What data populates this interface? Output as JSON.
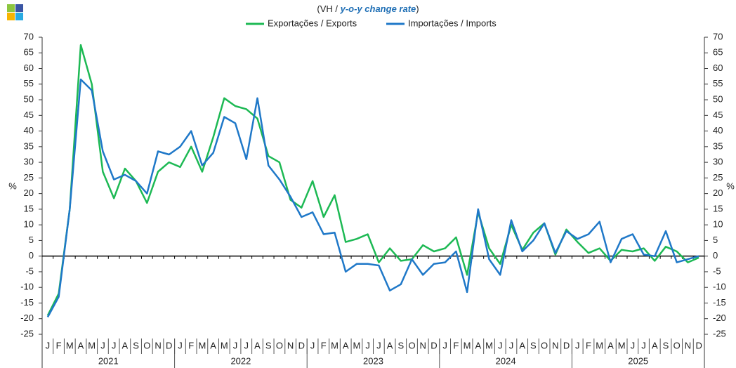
{
  "chart_data": {
    "type": "line",
    "title_parts": [
      "(VH / ",
      "y-o-y change rate",
      ")"
    ],
    "ylabel": "%",
    "categories": [
      "J",
      "F",
      "M",
      "A",
      "M",
      "J",
      "J",
      "A",
      "S",
      "O",
      "N",
      "D",
      "J",
      "F",
      "M",
      "A",
      "M",
      "J",
      "J",
      "A",
      "S",
      "O",
      "N",
      "D",
      "J",
      "F",
      "M",
      "A",
      "M",
      "J",
      "J",
      "A",
      "S",
      "O",
      "N",
      "D",
      "J",
      "F",
      "M",
      "A",
      "M",
      "J",
      "J",
      "A",
      "S",
      "O",
      "N",
      "D",
      "J",
      "F",
      "M",
      "A",
      "M",
      "J",
      "J",
      "A",
      "S",
      "O",
      "N",
      "D"
    ],
    "years": [
      "2021",
      "2022",
      "2023",
      "2024",
      "2025"
    ],
    "series": [
      {
        "name": "Exportações / Exports",
        "color": "#1db954",
        "values": [
          -19,
          -12,
          15,
          67.5,
          55,
          27,
          18.5,
          28,
          24,
          17,
          27,
          30,
          28.5,
          35,
          27,
          38,
          50.5,
          48,
          47,
          44,
          32,
          30,
          18,
          15.5,
          24,
          12.5,
          19.5,
          4.5,
          5.5,
          7,
          -2,
          2.5,
          -1.5,
          -1,
          3.5,
          1.5,
          2.5,
          6,
          -6,
          14,
          2.5,
          -2.5,
          10,
          2,
          7.5,
          10.5,
          0.5,
          8.5,
          4.5,
          1,
          2.5,
          -1.5,
          2,
          1.5,
          2.5,
          -1.5,
          3,
          1.5,
          -2,
          -0.5
        ]
      },
      {
        "name": "Importações / Imports",
        "color": "#1f78c8",
        "values": [
          -19.5,
          -13,
          15,
          56.5,
          53,
          33.5,
          24.5,
          26,
          24,
          20,
          33.5,
          32.5,
          35,
          40,
          29,
          33,
          44.5,
          42.5,
          31,
          50.5,
          29,
          24.5,
          19,
          12.5,
          14,
          7,
          7.5,
          -5,
          -2.5,
          -2.5,
          -3,
          -11,
          -9,
          -1,
          -6,
          -2.5,
          -2,
          1.5,
          -11.5,
          15,
          -1,
          -6,
          11.5,
          1.5,
          5,
          10.5,
          1,
          8,
          5.5,
          7,
          11,
          -2,
          5.5,
          7,
          0.5,
          0,
          8,
          -2,
          -1,
          0
        ]
      }
    ],
    "ylim": [
      -25,
      70
    ],
    "yticks": [
      -25,
      -20,
      -15,
      -10,
      -5,
      0,
      5,
      10,
      15,
      20,
      25,
      30,
      35,
      40,
      45,
      50,
      55,
      60,
      65,
      70
    ],
    "y2lim": [
      -25,
      70
    ],
    "y2ticks": [
      -25,
      -20,
      -15,
      -10,
      -5,
      0,
      5,
      10,
      15,
      20,
      25,
      30,
      35,
      40,
      45,
      50,
      55,
      60,
      65,
      70
    ],
    "legend": "top"
  }
}
